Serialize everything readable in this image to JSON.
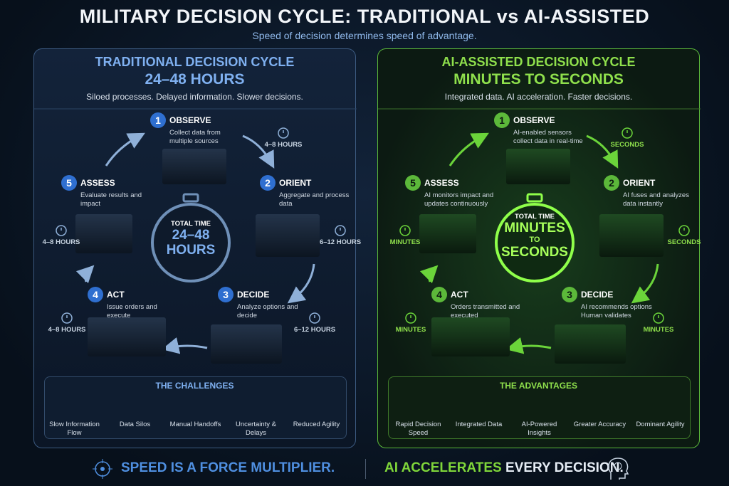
{
  "header": {
    "title": "MILITARY DECISION CYCLE: TRADITIONAL vs AI-ASSISTED",
    "subtitle": "Speed of decision determines speed of advantage."
  },
  "panels": [
    {
      "title": "TRADITIONAL DECISION CYCLE",
      "duration": "24–48 HOURS",
      "tagline": "Siloed processes. Delayed information. Slower decisions.",
      "steps": [
        {
          "number": "1",
          "name": "OBSERVE",
          "description": "Collect data from multiple sources"
        },
        {
          "number": "2",
          "name": "ORIENT",
          "description": "Aggregate and process data"
        },
        {
          "number": "3",
          "name": "DECIDE",
          "description": "Analyze options and decide"
        },
        {
          "number": "4",
          "name": "ACT",
          "description": "Issue orders and execute"
        },
        {
          "number": "5",
          "name": "ASSESS",
          "description": "Evaluate results and impact"
        }
      ],
      "timers": [
        "4–8 HOURS",
        "6–12 HOURS",
        "6–12 HOURS",
        "4–8 HOURS",
        "4–8 HOURS"
      ],
      "center": {
        "label": "TOTAL TIME",
        "lines": [
          "24–48",
          "HOURS"
        ]
      },
      "section_title": "THE CHALLENGES",
      "items": [
        "Slow Information Flow",
        "Data Silos",
        "Manual Handoffs",
        "Uncertainty & Delays",
        "Reduced Agility"
      ]
    },
    {
      "title": "AI-ASSISTED DECISION CYCLE",
      "duration": "MINUTES TO SECONDS",
      "tagline": "Integrated data. AI acceleration. Faster decisions.",
      "steps": [
        {
          "number": "1",
          "name": "OBSERVE",
          "description": "AI-enabled sensors collect data in real-time"
        },
        {
          "number": "2",
          "name": "ORIENT",
          "description": "AI fuses and analyzes data instantly"
        },
        {
          "number": "3",
          "name": "DECIDE",
          "description": "AI recommends options Human validates"
        },
        {
          "number": "4",
          "name": "ACT",
          "description": "Orders transmitted and executed"
        },
        {
          "number": "5",
          "name": "ASSESS",
          "description": "AI monitors impact and updates continuously"
        }
      ],
      "timers": [
        "SECONDS",
        "SECONDS",
        "MINUTES",
        "MINUTES",
        "MINUTES"
      ],
      "center": {
        "label": "TOTAL TIME",
        "lines": [
          "MINUTES",
          "TO",
          "SECONDS"
        ]
      },
      "section_title": "THE ADVANTAGES",
      "items": [
        "Rapid Decision Speed",
        "Integrated Data",
        "AI-Powered Insights",
        "Greater Accuracy",
        "Dominant Agility"
      ]
    }
  ],
  "footer": {
    "left": "SPEED IS A FORCE MULTIPLIER.",
    "right_accent": "AI ACCELERATES",
    "right_rest": "EVERY DECISION."
  }
}
